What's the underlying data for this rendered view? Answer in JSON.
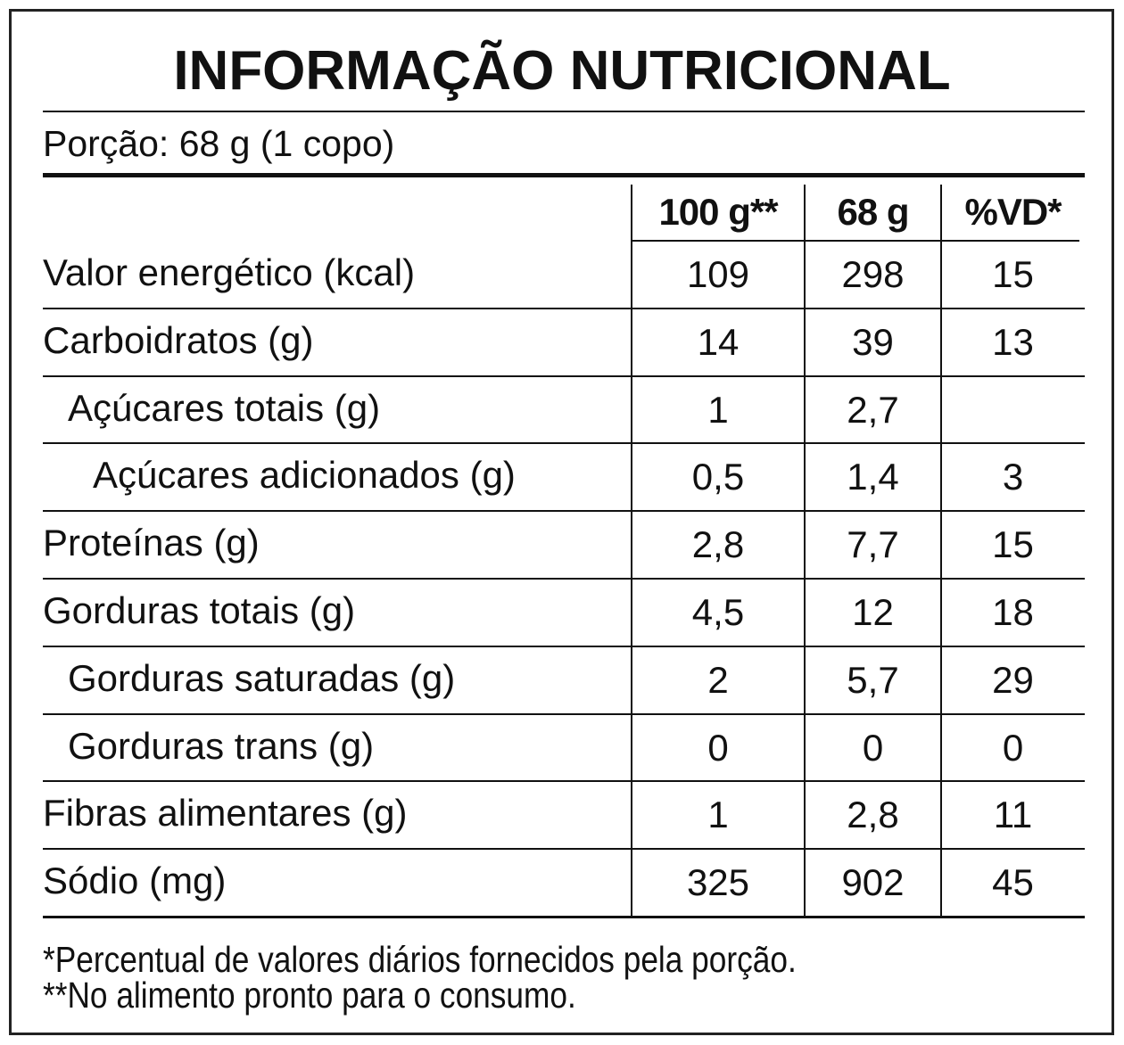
{
  "header": {
    "title": "INFORMAÇÃO NUTRICIONAL",
    "portion": "Porção: 68 g (1 copo)"
  },
  "table": {
    "columns": [
      "100 g**",
      "68 g",
      "%VD*"
    ],
    "rows": [
      [
        "Valor energético (kcal)",
        109,
        298,
        15
      ],
      [
        "Carboidratos (g)",
        14,
        39,
        13
      ],
      [
        "Açúcares totais (g)",
        1,
        "2,7",
        null
      ],
      [
        "Açúcares adicionados (g)",
        "0,5",
        "1,4",
        3
      ],
      [
        "Proteínas (g)",
        "2,8",
        "7,7",
        15
      ],
      [
        "Gorduras totais (g)",
        "4,5",
        12,
        18
      ],
      [
        "Gorduras saturadas (g)",
        2,
        "5,7",
        29
      ],
      [
        "Gorduras trans (g)",
        0,
        0,
        0
      ],
      [
        "Fibras alimentares (g)",
        1,
        "2,8",
        11
      ],
      [
        "Sódio (mg)",
        325,
        902,
        45
      ]
    ]
  },
  "footnotes": [
    "*Percentual de valores diários fornecidos pela porção.",
    "**No alimento pronto para o consumo."
  ]
}
